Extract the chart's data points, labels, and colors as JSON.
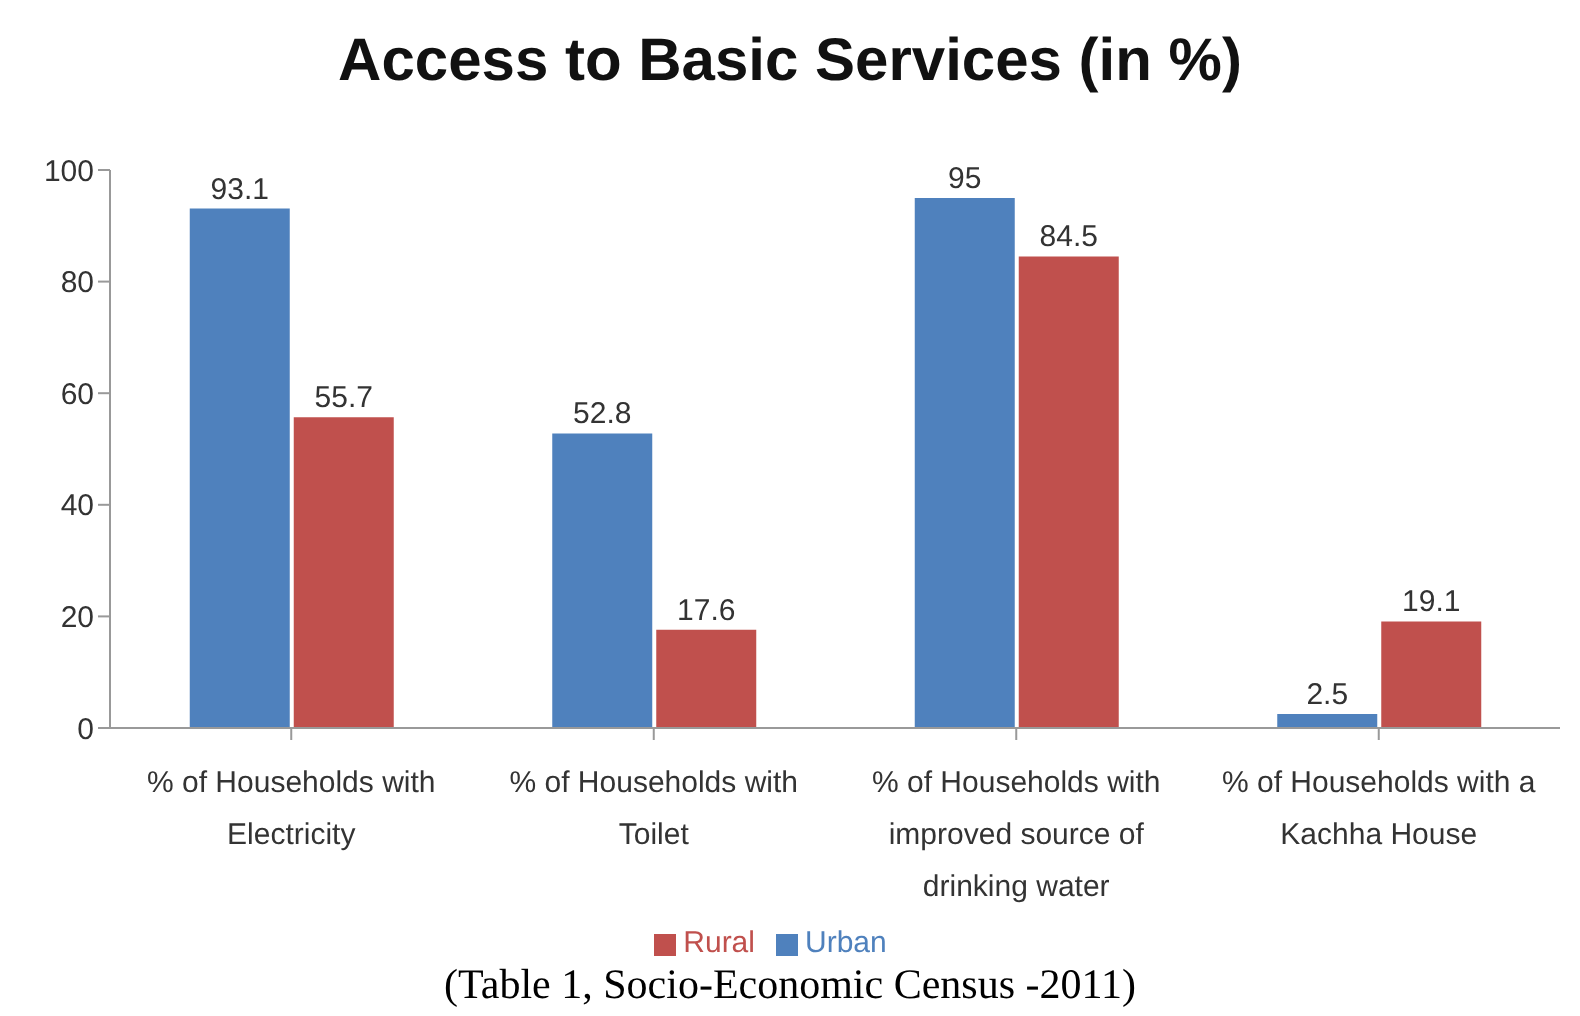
{
  "chart_data": {
    "type": "bar",
    "title": "Access to Basic Services (in %)",
    "categories": [
      "% of Households with Electricity",
      "% of Households with Toilet",
      "% of Households with improved source of drinking water",
      "% of Households with a Kachha House"
    ],
    "series": [
      {
        "name": "Urban",
        "color": "#4f81bd",
        "values": [
          93.1,
          52.8,
          95,
          2.5
        ]
      },
      {
        "name": "Rural",
        "color": "#c0504d",
        "values": [
          55.7,
          17.6,
          84.5,
          19.1
        ]
      }
    ],
    "ylim": [
      0,
      100
    ],
    "yticks": [
      0,
      20,
      40,
      60,
      80,
      100
    ],
    "grid": false,
    "legend": "bottom",
    "data_labels": true,
    "annotations": [
      "(Table 1, Socio-Economic Census -2011)"
    ]
  }
}
